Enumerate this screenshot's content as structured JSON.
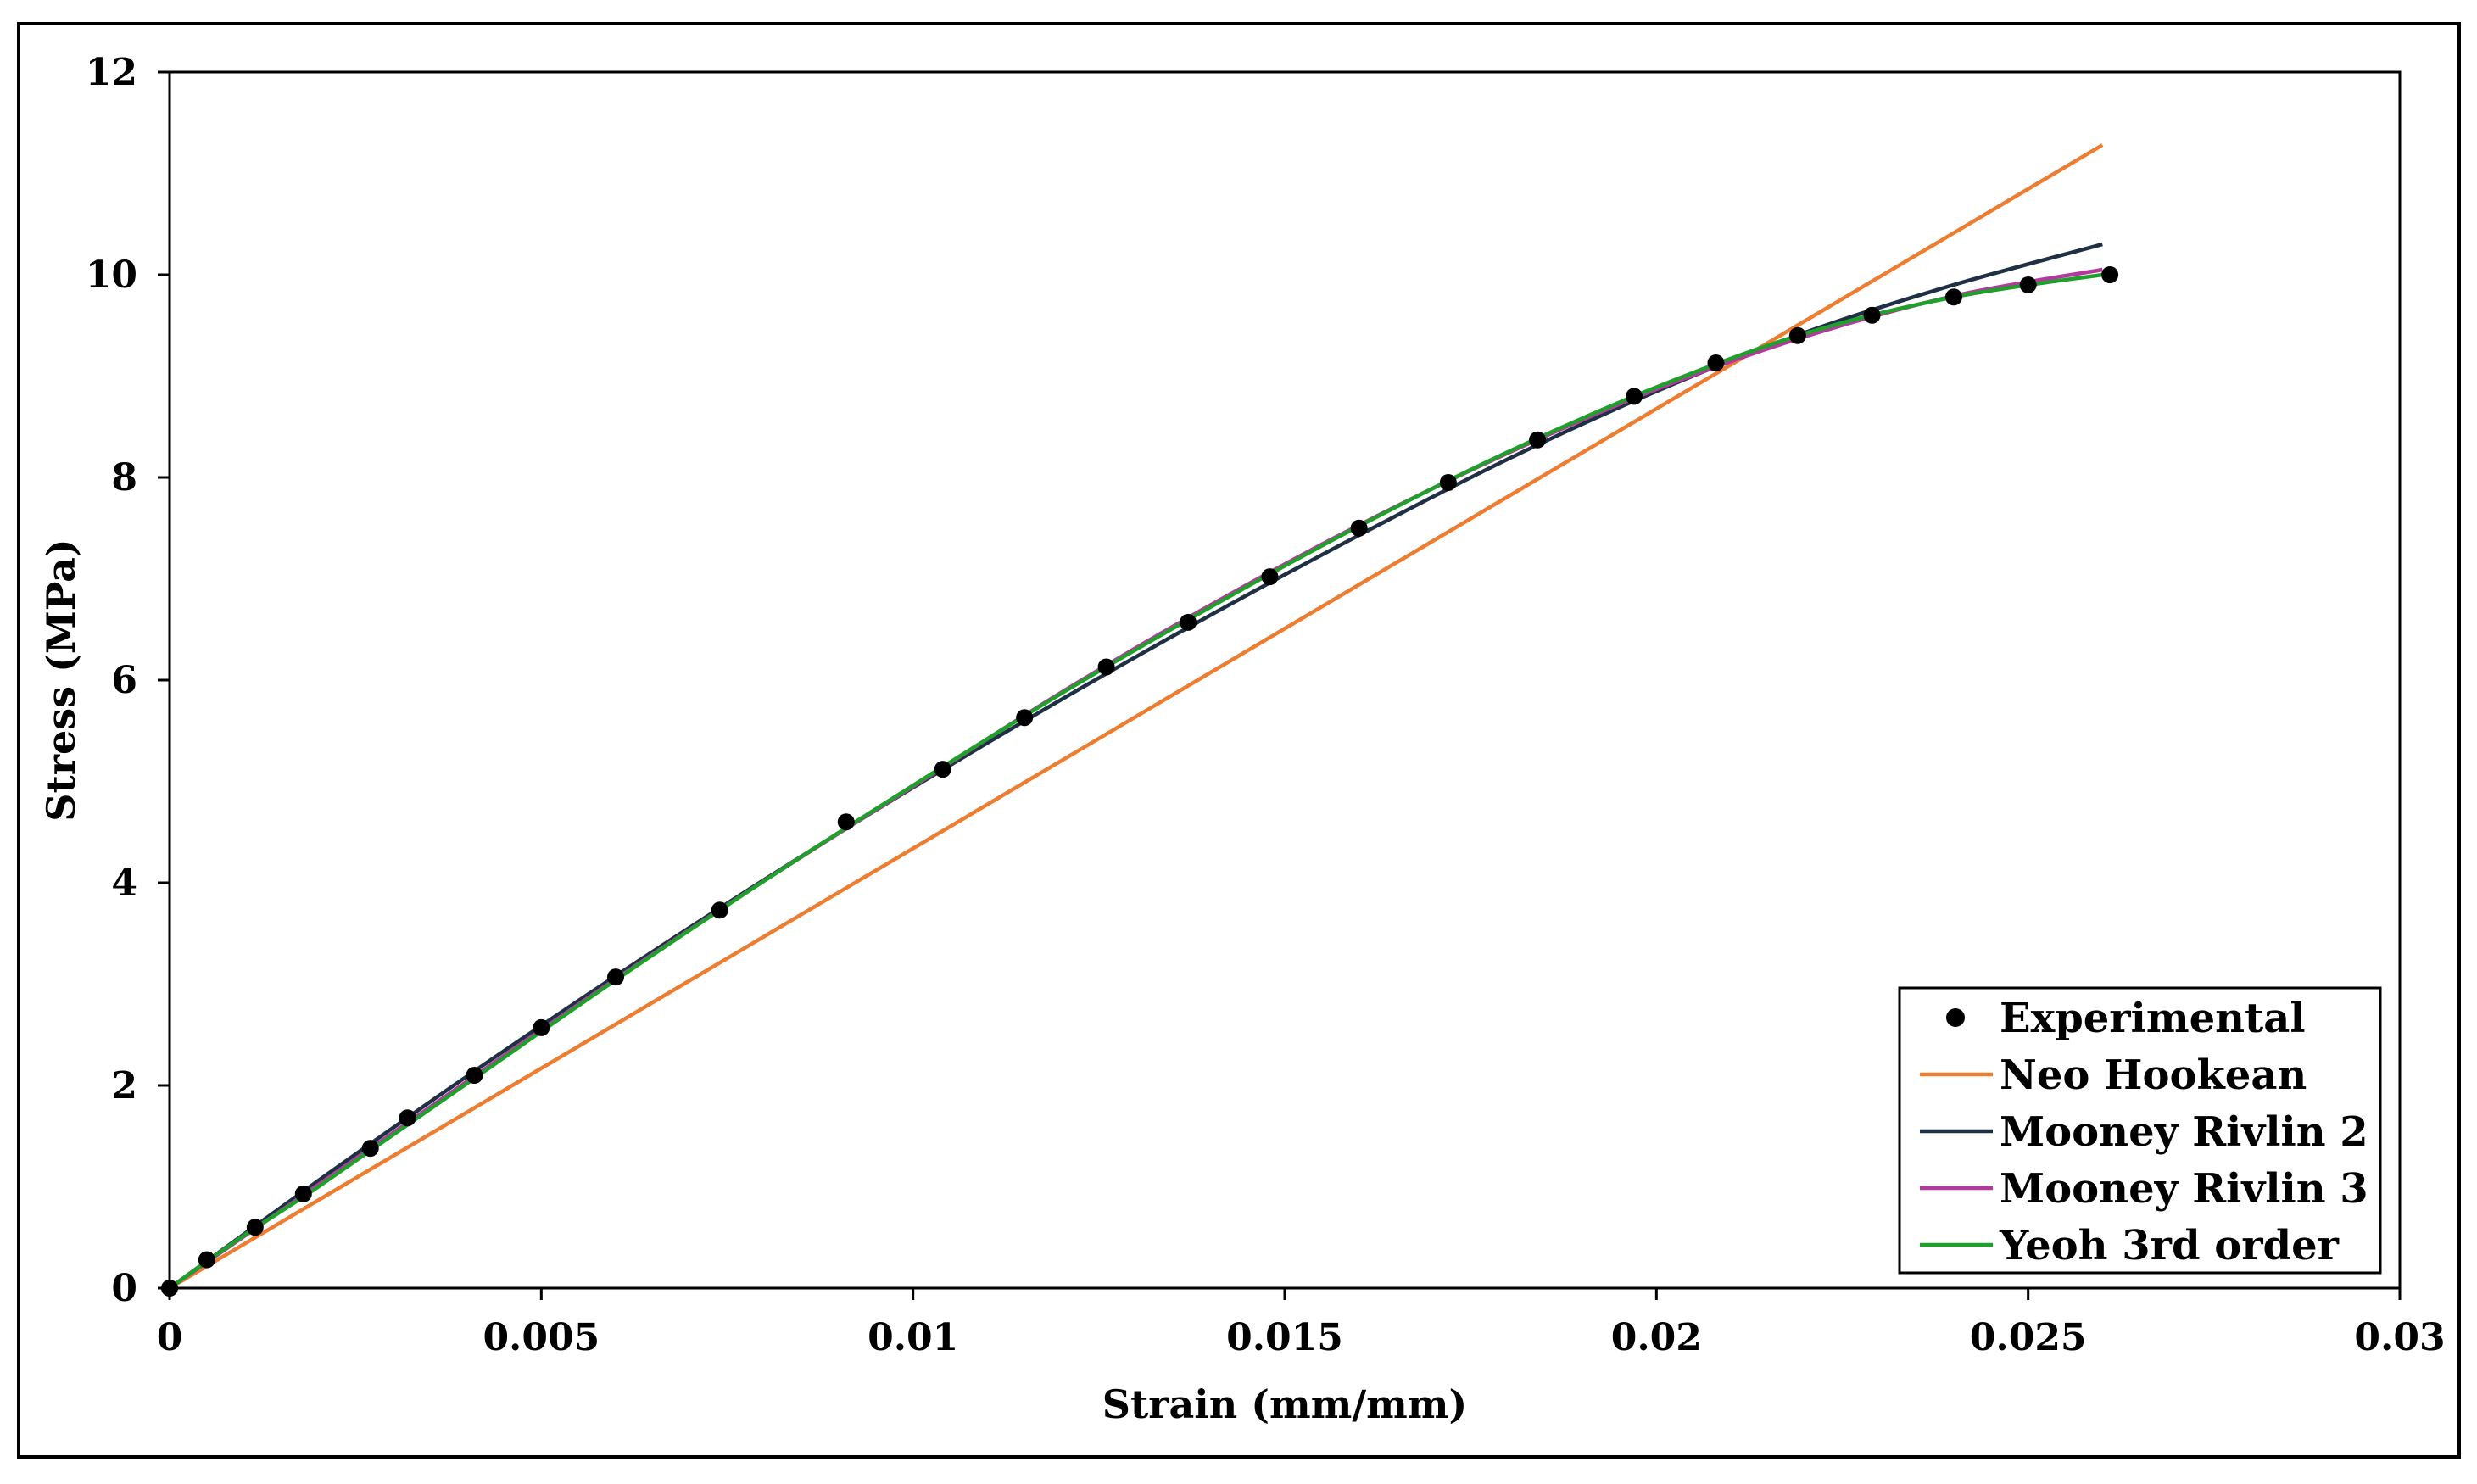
{
  "chart_data": {
    "type": "scatter",
    "title": "",
    "xlabel": "Strain (mm/mm)",
    "ylabel": "Stress (MPa)",
    "xlim": [
      0,
      0.03
    ],
    "ylim": [
      0,
      12
    ],
    "xticks": [
      0,
      0.005,
      0.01,
      0.015,
      0.02,
      0.025,
      0.03
    ],
    "xtick_labels": [
      "0",
      "0.005",
      "0.01",
      "0.015",
      "0.02",
      "0.025",
      "0.03"
    ],
    "yticks": [
      0,
      2,
      4,
      6,
      8,
      10,
      12
    ],
    "ytick_labels": [
      "0",
      "2",
      "4",
      "6",
      "8",
      "10",
      "12"
    ],
    "grid": false,
    "legend_position": "bottom-right",
    "series": [
      {
        "name": "Experimental",
        "kind": "markers",
        "color": "#000000",
        "points": [
          [
            0,
            0
          ],
          [
            0.0005,
            0.28
          ],
          [
            0.00115,
            0.6
          ],
          [
            0.0018,
            0.93
          ],
          [
            0.0027,
            1.38
          ],
          [
            0.0032,
            1.68
          ],
          [
            0.0041,
            2.1
          ],
          [
            0.005,
            2.57
          ],
          [
            0.006,
            3.07
          ],
          [
            0.0074,
            3.73
          ],
          [
            0.0091,
            4.6
          ],
          [
            0.0104,
            5.12
          ],
          [
            0.0115,
            5.63
          ],
          [
            0.0126,
            6.13
          ],
          [
            0.0137,
            6.57
          ],
          [
            0.0148,
            7.02
          ],
          [
            0.016,
            7.5
          ],
          [
            0.0172,
            7.95
          ],
          [
            0.0184,
            8.37
          ],
          [
            0.0197,
            8.8
          ],
          [
            0.0208,
            9.13
          ],
          [
            0.0219,
            9.4
          ],
          [
            0.0229,
            9.6
          ],
          [
            0.024,
            9.78
          ],
          [
            0.025,
            9.9
          ],
          [
            0.0261,
            10.0
          ]
        ]
      },
      {
        "name": "Neo Hookean",
        "kind": "line",
        "color": "#ED7D31",
        "points": [
          [
            0,
            0
          ],
          [
            0.026,
            11.28
          ]
        ]
      },
      {
        "name": "Mooney Rivlin 2",
        "kind": "line",
        "color": "#1F3044",
        "points": [
          [
            0,
            0
          ],
          [
            0.002,
            1.06
          ],
          [
            0.004,
            2.09
          ],
          [
            0.006,
            3.08
          ],
          [
            0.008,
            4.03
          ],
          [
            0.01,
            4.94
          ],
          [
            0.012,
            5.81
          ],
          [
            0.014,
            6.64
          ],
          [
            0.016,
            7.43
          ],
          [
            0.018,
            8.18
          ],
          [
            0.02,
            8.85
          ],
          [
            0.022,
            9.43
          ],
          [
            0.024,
            9.9
          ],
          [
            0.026,
            10.3
          ]
        ]
      },
      {
        "name": "Mooney Rivlin 3",
        "kind": "line",
        "color": "#B5389F",
        "points": [
          [
            0,
            0
          ],
          [
            0.002,
            1.02
          ],
          [
            0.004,
            2.04
          ],
          [
            0.006,
            3.05
          ],
          [
            0.008,
            4.02
          ],
          [
            0.01,
            4.95
          ],
          [
            0.012,
            5.88
          ],
          [
            0.014,
            6.74
          ],
          [
            0.016,
            7.53
          ],
          [
            0.018,
            8.24
          ],
          [
            0.02,
            8.87
          ],
          [
            0.022,
            9.39
          ],
          [
            0.024,
            9.79
          ],
          [
            0.026,
            10.05
          ]
        ]
      },
      {
        "name": "Yeoh 3rd order",
        "kind": "line",
        "color": "#1FA02A",
        "points": [
          [
            0,
            0
          ],
          [
            0.001,
            0.52
          ],
          [
            0.002,
            1.0
          ],
          [
            0.004,
            2.02
          ],
          [
            0.006,
            3.04
          ],
          [
            0.008,
            4.02
          ],
          [
            0.01,
            4.96
          ],
          [
            0.012,
            5.87
          ],
          [
            0.014,
            6.72
          ],
          [
            0.016,
            7.52
          ],
          [
            0.018,
            8.25
          ],
          [
            0.02,
            8.89
          ],
          [
            0.022,
            9.42
          ],
          [
            0.024,
            9.78
          ],
          [
            0.026,
            10.0
          ]
        ]
      }
    ]
  }
}
